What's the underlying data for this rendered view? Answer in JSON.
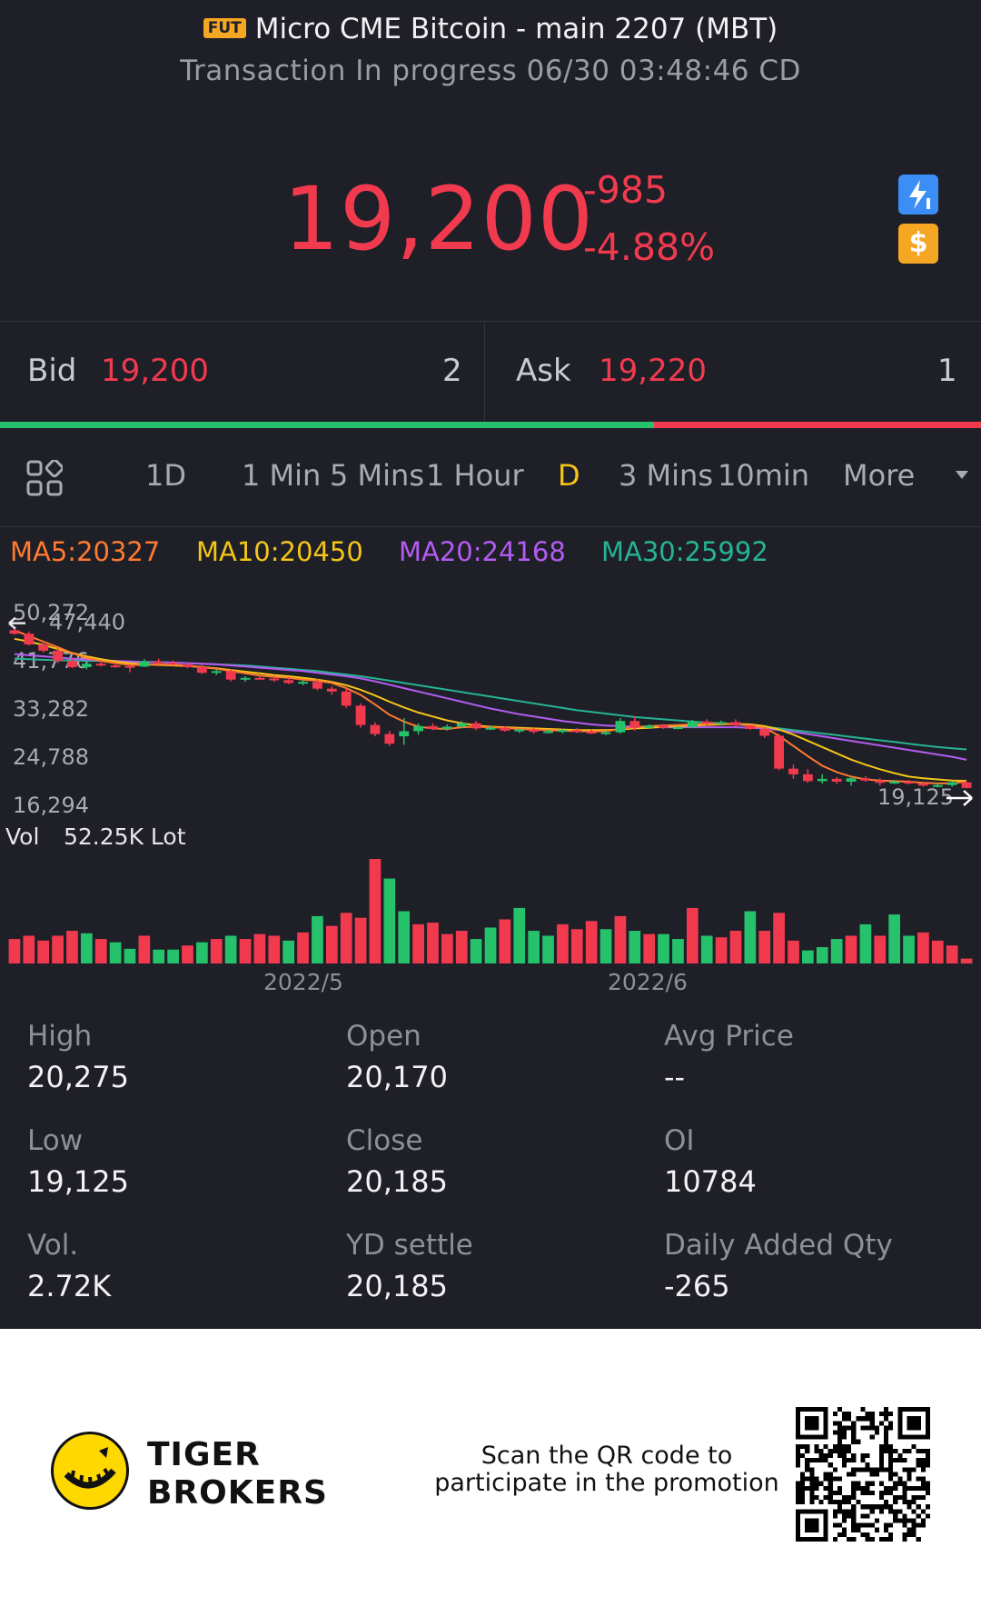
{
  "header": {
    "badge": "FUT",
    "title": "Micro CME Bitcoin - main 2207 (MBT)",
    "status": "Transaction In progress 06/30 03:48:46 CD"
  },
  "quote": {
    "price": "19,200",
    "change": "-985",
    "change_pct": "-4.88%",
    "icons": [
      "lightning-level1-icon",
      "dollar-icon"
    ]
  },
  "bidask": {
    "bid_label": "Bid",
    "bid_price": "19,200",
    "bid_qty": "2",
    "ask_label": "Ask",
    "ask_price": "19,220",
    "ask_qty": "1",
    "bid_share": 0.667
  },
  "tabs": {
    "items": [
      "1D",
      "1 Min",
      "5 Mins",
      "1 Hour",
      "D",
      "3 Mins",
      "10min",
      "More"
    ],
    "active": "D"
  },
  "ma": {
    "ma5": "MA5:20327",
    "ma10": "MA10:20450",
    "ma20": "MA20:24168",
    "ma30": "MA30:25992",
    "colors": {
      "ma5": "#ff7a2f",
      "ma10": "#f5c518",
      "ma20": "#b45cf0",
      "ma30": "#26b394"
    }
  },
  "chart_data": {
    "type": "candlestick",
    "y_ticks": [
      "50,272",
      "41,776",
      "33,282",
      "24,788",
      "16,294"
    ],
    "ylim": [
      16294,
      50272
    ],
    "high_marker": "47,440",
    "low_marker": "19,125",
    "x_labels": [
      "2022/5",
      "2022/6"
    ],
    "up_color": "#26c16b",
    "down_color": "#f23a4f",
    "candles": [
      [
        47000,
        47440,
        46200,
        46400
      ],
      [
        46400,
        46800,
        44300,
        44500
      ],
      [
        44500,
        45200,
        43100,
        43400
      ],
      [
        43400,
        43900,
        41200,
        41600
      ],
      [
        41600,
        42100,
        40300,
        40500
      ],
      [
        40500,
        41400,
        40100,
        41100
      ],
      [
        41100,
        41600,
        40600,
        40800
      ],
      [
        40800,
        41200,
        40400,
        40700
      ],
      [
        40700,
        41000,
        39600,
        40600
      ],
      [
        40600,
        41900,
        40500,
        41500
      ],
      [
        41500,
        42000,
        41000,
        41300
      ],
      [
        41300,
        41700,
        40800,
        41000
      ],
      [
        41000,
        41400,
        40300,
        40500
      ],
      [
        40500,
        40900,
        39300,
        39500
      ],
      [
        39500,
        40100,
        39100,
        39800
      ],
      [
        39800,
        40200,
        38000,
        38300
      ],
      [
        38300,
        38900,
        37900,
        38600
      ],
      [
        38600,
        39000,
        38300,
        38500
      ],
      [
        38500,
        38900,
        37900,
        38200
      ],
      [
        38200,
        38700,
        37500,
        37700
      ],
      [
        37700,
        38200,
        37300,
        37900
      ],
      [
        37900,
        38400,
        36400,
        36700
      ],
      [
        36700,
        37100,
        35600,
        36200
      ],
      [
        36200,
        36700,
        33300,
        33700
      ],
      [
        33700,
        34100,
        29800,
        30300
      ],
      [
        30300,
        30800,
        28300,
        28700
      ],
      [
        28700,
        29300,
        26600,
        27000
      ],
      [
        28300,
        31500,
        26800,
        29200
      ],
      [
        29200,
        30600,
        28600,
        30100
      ],
      [
        30100,
        30600,
        29400,
        29600
      ],
      [
        29600,
        30400,
        29300,
        30000
      ],
      [
        30000,
        31000,
        29700,
        30600
      ],
      [
        30600,
        31000,
        29400,
        29700
      ],
      [
        29700,
        30200,
        29400,
        29800
      ],
      [
        29800,
        30100,
        29100,
        29300
      ],
      [
        29300,
        29700,
        28900,
        29500
      ],
      [
        29500,
        29900,
        28800,
        29100
      ],
      [
        29100,
        29500,
        28800,
        29200
      ],
      [
        29200,
        29600,
        28800,
        29400
      ],
      [
        29400,
        29800,
        28900,
        29100
      ],
      [
        29100,
        29500,
        28700,
        28800
      ],
      [
        28800,
        29300,
        28500,
        29000
      ],
      [
        29000,
        31500,
        28800,
        31000
      ],
      [
        31000,
        31800,
        29300,
        29800
      ],
      [
        29800,
        30400,
        29600,
        30200
      ],
      [
        30200,
        30500,
        29600,
        29800
      ],
      [
        29800,
        30100,
        29600,
        29900
      ],
      [
        29900,
        31200,
        29800,
        30900
      ],
      [
        30900,
        31300,
        30200,
        30600
      ],
      [
        30600,
        31100,
        30200,
        30800
      ],
      [
        30800,
        31300,
        30000,
        30200
      ],
      [
        30200,
        30400,
        29400,
        29600
      ],
      [
        29600,
        29900,
        28000,
        28400
      ],
      [
        28400,
        28700,
        22300,
        22600
      ],
      [
        22600,
        23300,
        20800,
        21600
      ],
      [
        21600,
        22500,
        20100,
        20400
      ],
      [
        20400,
        21600,
        20000,
        20800
      ],
      [
        20800,
        21100,
        19900,
        20300
      ],
      [
        20300,
        21200,
        19600,
        20900
      ],
      [
        20900,
        21300,
        20300,
        20500
      ],
      [
        20500,
        20900,
        19600,
        20100
      ],
      [
        20100,
        20600,
        19900,
        20300
      ],
      [
        20300,
        20600,
        19800,
        20000
      ],
      [
        20000,
        20300,
        19400,
        19600
      ],
      [
        19600,
        20100,
        19300,
        19700
      ],
      [
        19700,
        20300,
        19400,
        20200
      ],
      [
        20170,
        20275,
        19125,
        19200
      ]
    ],
    "ma5": [
      47000,
      46000,
      45000,
      44000,
      43000,
      42100,
      41600,
      41200,
      40900,
      40900,
      41000,
      40900,
      40800,
      40500,
      40200,
      39800,
      39400,
      39000,
      38800,
      38600,
      38300,
      38100,
      37700,
      36800,
      35600,
      33900,
      32100,
      30900,
      30000,
      29700,
      29600,
      29900,
      30000,
      29900,
      29800,
      29600,
      29500,
      29400,
      29300,
      29200,
      29200,
      29200,
      29600,
      29900,
      30100,
      30200,
      30300,
      30400,
      30500,
      30500,
      30500,
      30200,
      29800,
      28400,
      26600,
      24800,
      23100,
      22000,
      21200,
      20700,
      20500,
      20400,
      20300,
      20100,
      20000,
      20000,
      20327
    ],
    "ma10": [
      45500,
      45000,
      44400,
      43700,
      43000,
      42400,
      41900,
      41500,
      41200,
      41000,
      40900,
      40800,
      40700,
      40500,
      40300,
      40000,
      39700,
      39400,
      39100,
      38900,
      38600,
      38300,
      37900,
      37300,
      36500,
      35500,
      34400,
      33400,
      32500,
      31800,
      31100,
      30600,
      30200,
      30000,
      29900,
      29800,
      29700,
      29600,
      29500,
      29400,
      29400,
      29400,
      29500,
      29700,
      29800,
      30000,
      30100,
      30200,
      30300,
      30400,
      30500,
      30400,
      30100,
      29500,
      28600,
      27500,
      26400,
      25300,
      24200,
      23300,
      22500,
      21800,
      21200,
      20900,
      20700,
      20500,
      20450
    ],
    "ma20": [
      42800,
      42600,
      42400,
      42200,
      42000,
      41800,
      41700,
      41600,
      41500,
      41400,
      41400,
      41300,
      41200,
      41100,
      41000,
      40800,
      40600,
      40400,
      40200,
      40000,
      39800,
      39500,
      39200,
      38900,
      38500,
      38000,
      37400,
      36800,
      36200,
      35600,
      35000,
      34400,
      33800,
      33200,
      32700,
      32200,
      31800,
      31400,
      31000,
      30700,
      30400,
      30200,
      30100,
      30000,
      29900,
      29900,
      29900,
      29900,
      29900,
      29900,
      29900,
      29800,
      29700,
      29400,
      29100,
      28700,
      28300,
      27900,
      27500,
      27100,
      26700,
      26300,
      25900,
      25500,
      25100,
      24700,
      24168
    ],
    "ma30": [
      42000,
      41900,
      41800,
      41700,
      41700,
      41600,
      41600,
      41500,
      41500,
      41400,
      41400,
      41300,
      41200,
      41100,
      41000,
      40900,
      40800,
      40600,
      40400,
      40200,
      40000,
      39800,
      39500,
      39200,
      38900,
      38500,
      38100,
      37700,
      37300,
      36900,
      36500,
      36100,
      35700,
      35300,
      34900,
      34500,
      34100,
      33700,
      33300,
      32900,
      32600,
      32300,
      32000,
      31700,
      31500,
      31300,
      31100,
      30900,
      30700,
      30600,
      30400,
      30200,
      30000,
      29700,
      29400,
      29100,
      28800,
      28500,
      28200,
      27900,
      27600,
      27300,
      27000,
      26700,
      26400,
      26200,
      25992
    ],
    "volume_label": "Vol",
    "volume_value": "52.25K Lot",
    "volumes": [
      30,
      34,
      28,
      34,
      40,
      37,
      30,
      26,
      18,
      34,
      17,
      17,
      22,
      26,
      30,
      34,
      30,
      36,
      34,
      28,
      38,
      58,
      46,
      62,
      56,
      128,
      104,
      64,
      48,
      50,
      36,
      40,
      30,
      44,
      54,
      68,
      40,
      34,
      48,
      42,
      52,
      42,
      58,
      40,
      36,
      36,
      30,
      68,
      34,
      32,
      40,
      64,
      40,
      62,
      28,
      16,
      20,
      30,
      34,
      48,
      34,
      60,
      34,
      38,
      28,
      22,
      6
    ],
    "volume_dir": [
      "d",
      "d",
      "d",
      "d",
      "d",
      "u",
      "d",
      "u",
      "u",
      "d",
      "u",
      "u",
      "d",
      "u",
      "d",
      "u",
      "d",
      "d",
      "d",
      "u",
      "d",
      "u",
      "d",
      "d",
      "d",
      "d",
      "u",
      "u",
      "d",
      "d",
      "d",
      "d",
      "u",
      "u",
      "d",
      "u",
      "u",
      "u",
      "d",
      "d",
      "d",
      "u",
      "d",
      "u",
      "d",
      "u",
      "u",
      "d",
      "u",
      "d",
      "d",
      "u",
      "d",
      "d",
      "d",
      "u",
      "u",
      "u",
      "d",
      "u",
      "d",
      "u",
      "u",
      "d",
      "d",
      "d",
      "d"
    ]
  },
  "stats": [
    {
      "label": "High",
      "value": "20,275"
    },
    {
      "label": "Open",
      "value": "20,170"
    },
    {
      "label": "Avg Price",
      "value": "--"
    },
    {
      "label": "Low",
      "value": "19,125"
    },
    {
      "label": "Close",
      "value": "20,185"
    },
    {
      "label": "OI",
      "value": "10784"
    },
    {
      "label": "Vol.",
      "value": "2.72K"
    },
    {
      "label": "YD settle",
      "value": "20,185"
    },
    {
      "label": "Daily Added Qty",
      "value": "-265"
    }
  ],
  "footer": {
    "brand_line1": "TIGER",
    "brand_line2": "BROKERS",
    "promo_line1": "Scan the QR code to",
    "promo_line2": "participate in the promotion"
  }
}
